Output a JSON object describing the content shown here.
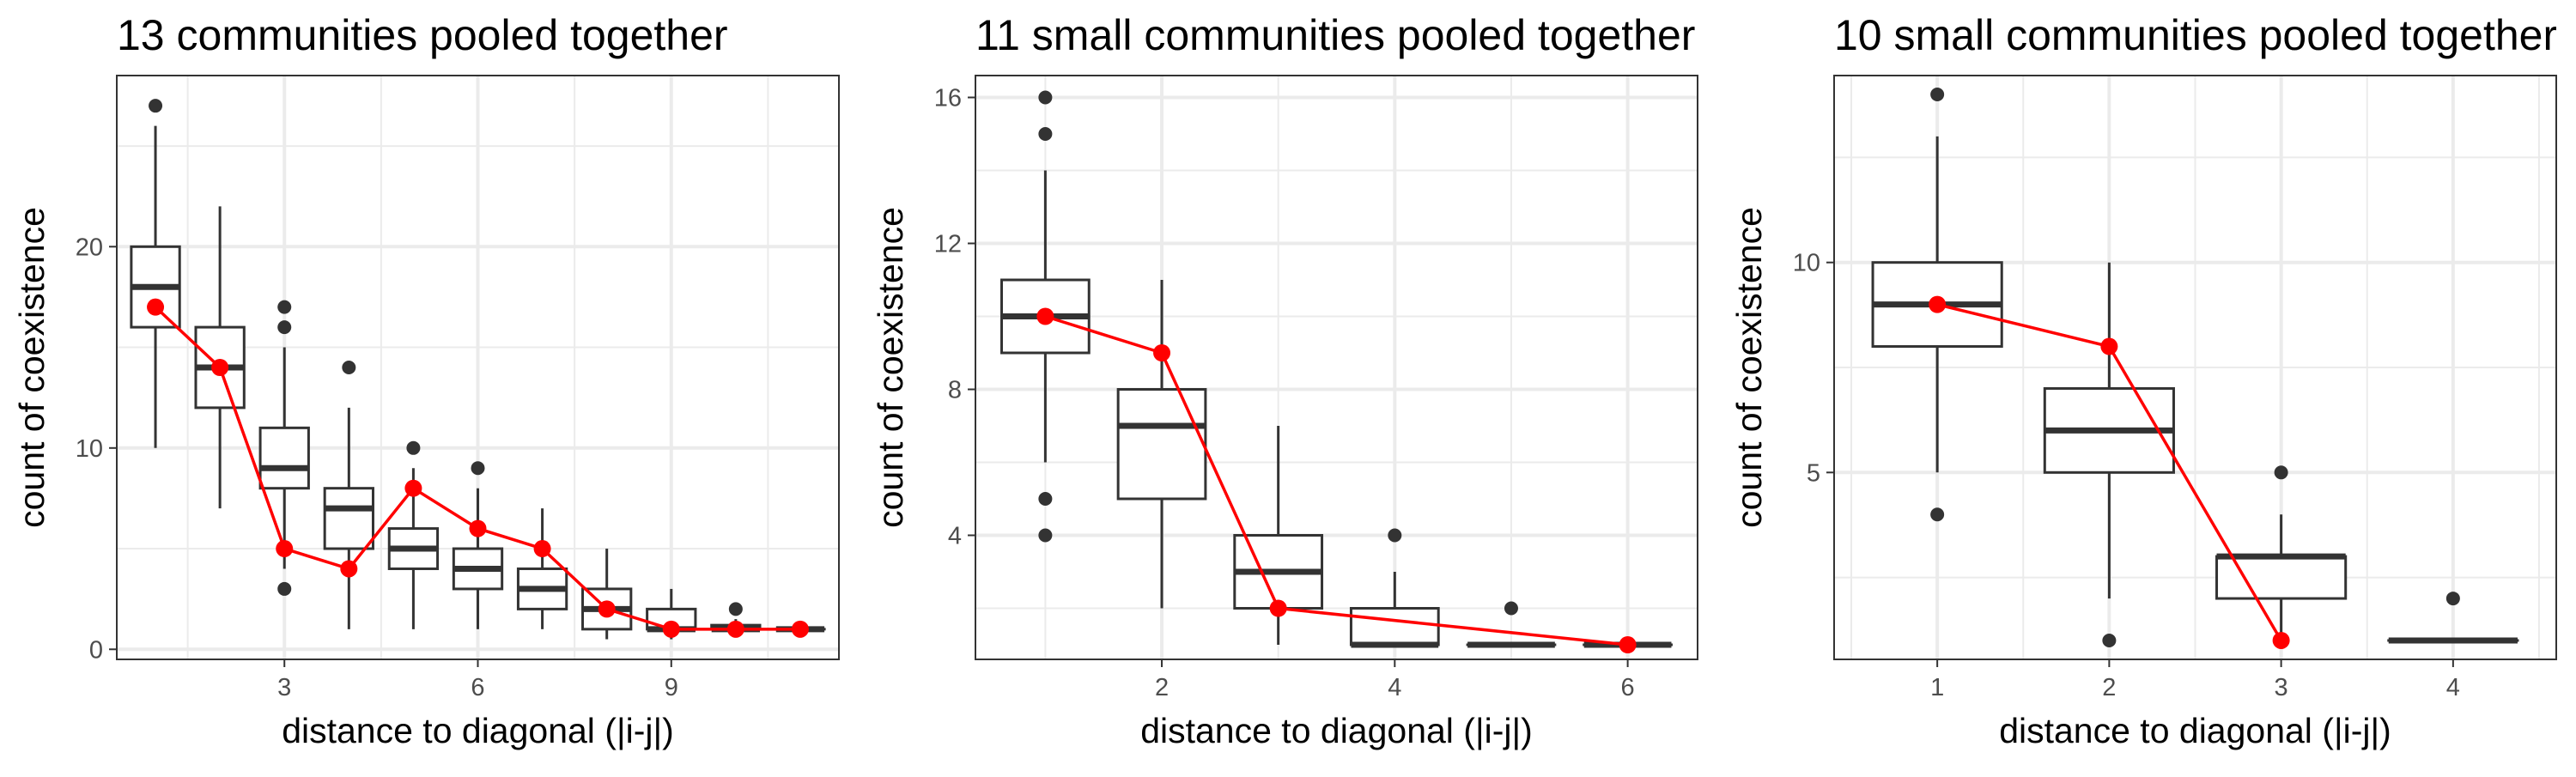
{
  "colors": {
    "box_stroke": "#333333",
    "outlier": "#333333",
    "observed": "#ff0000",
    "grid": "#ebebeb",
    "panel_border": "#333333",
    "tick_text": "#4d4d4d",
    "title_text": "#000000"
  },
  "chart_data": [
    {
      "type": "boxplot",
      "title": "13 communities pooled together",
      "xlabel": "distance to diagonal (|i-j|)",
      "ylabel": "count of coexistence",
      "xlim": [
        0.4,
        11.6
      ],
      "ylim": [
        -0.5,
        28.5
      ],
      "x_ticks": [
        3,
        6,
        9
      ],
      "y_ticks": [
        0,
        10,
        20
      ],
      "grid": true,
      "boxes": [
        {
          "x": 1,
          "min": 10,
          "q1": 16,
          "median": 18,
          "q3": 20,
          "max": 26,
          "outliers": [
            27
          ]
        },
        {
          "x": 2,
          "min": 7,
          "q1": 12,
          "median": 14,
          "q3": 16,
          "max": 22,
          "outliers": []
        },
        {
          "x": 3,
          "min": 4,
          "q1": 8,
          "median": 9,
          "q3": 11,
          "max": 15,
          "outliers": [
            3,
            16,
            17
          ]
        },
        {
          "x": 4,
          "min": 1,
          "q1": 5,
          "median": 7,
          "q3": 8,
          "max": 12,
          "outliers": [
            14
          ]
        },
        {
          "x": 5,
          "min": 1,
          "q1": 4,
          "median": 5,
          "q3": 6,
          "max": 9,
          "outliers": [
            10
          ]
        },
        {
          "x": 6,
          "min": 1,
          "q1": 3,
          "median": 4,
          "q3": 5,
          "max": 8,
          "outliers": [
            9
          ]
        },
        {
          "x": 7,
          "min": 1,
          "q1": 2,
          "median": 3,
          "q3": 4,
          "max": 7,
          "outliers": []
        },
        {
          "x": 8,
          "min": 0.5,
          "q1": 1,
          "median": 2,
          "q3": 3,
          "max": 5,
          "outliers": []
        },
        {
          "x": 9,
          "min": 0.5,
          "q1": 1,
          "median": 1,
          "q3": 2,
          "max": 3,
          "outliers": []
        },
        {
          "x": 10,
          "min": 0.6,
          "q1": 1,
          "median": 1,
          "q3": 1.2,
          "max": 1.5,
          "outliers": [
            2
          ]
        },
        {
          "x": 11,
          "min": 1,
          "q1": 1,
          "median": 1,
          "q3": 1,
          "max": 1,
          "outliers": []
        }
      ],
      "observed": {
        "x": [
          1,
          2,
          3,
          4,
          5,
          6,
          7,
          8,
          9,
          10,
          11
        ],
        "y": [
          17,
          14,
          5,
          4,
          8,
          6,
          5,
          2,
          1,
          1,
          1
        ]
      }
    },
    {
      "type": "boxplot",
      "title": "11 small communities pooled together",
      "xlabel": "distance to diagonal (|i-j|)",
      "ylabel": "count of coexistence",
      "xlim": [
        0.4,
        6.6
      ],
      "ylim": [
        0.6,
        16.6
      ],
      "x_ticks": [
        2,
        4,
        6
      ],
      "y_ticks": [
        4,
        8,
        12,
        16
      ],
      "grid": true,
      "boxes": [
        {
          "x": 1,
          "min": 6,
          "q1": 9,
          "median": 10,
          "q3": 11,
          "max": 14,
          "outliers": [
            4,
            5,
            15,
            16
          ]
        },
        {
          "x": 2,
          "min": 2,
          "q1": 5,
          "median": 7,
          "q3": 8,
          "max": 11,
          "outliers": []
        },
        {
          "x": 3,
          "min": 1,
          "q1": 2,
          "median": 3,
          "q3": 4,
          "max": 7,
          "outliers": []
        },
        {
          "x": 4,
          "min": 1,
          "q1": 1,
          "median": 1,
          "q3": 2,
          "max": 3,
          "outliers": [
            4
          ]
        },
        {
          "x": 5,
          "min": 1,
          "q1": 1,
          "median": 1,
          "q3": 1,
          "max": 1,
          "outliers": [
            2
          ]
        },
        {
          "x": 6,
          "min": 1,
          "q1": 1,
          "median": 1,
          "q3": 1,
          "max": 1,
          "outliers": []
        }
      ],
      "observed": {
        "x": [
          1,
          2,
          3,
          6
        ],
        "y": [
          10,
          9,
          2,
          1
        ]
      }
    },
    {
      "type": "boxplot",
      "title": "10 small communities pooled together",
      "xlabel": "distance to diagonal (|i-j|)",
      "ylabel": "count of coexistence",
      "xlim": [
        0.4,
        4.6
      ],
      "ylim": [
        0.55,
        14.45
      ],
      "x_ticks": [
        1,
        2,
        3,
        4
      ],
      "y_ticks": [
        5,
        10
      ],
      "grid": true,
      "boxes": [
        {
          "x": 1,
          "min": 5,
          "q1": 8,
          "median": 9,
          "q3": 10,
          "max": 13,
          "outliers": [
            4,
            14
          ]
        },
        {
          "x": 2,
          "min": 2,
          "q1": 5,
          "median": 6,
          "q3": 7,
          "max": 10,
          "outliers": [
            1
          ]
        },
        {
          "x": 3,
          "min": 1,
          "q1": 2,
          "median": 3,
          "q3": 3,
          "max": 4,
          "outliers": [
            5
          ]
        },
        {
          "x": 4,
          "min": 1,
          "q1": 1,
          "median": 1,
          "q3": 1,
          "max": 1,
          "outliers": [
            2
          ]
        }
      ],
      "observed": {
        "x": [
          1,
          2,
          3
        ],
        "y": [
          9,
          8,
          1
        ]
      }
    }
  ]
}
